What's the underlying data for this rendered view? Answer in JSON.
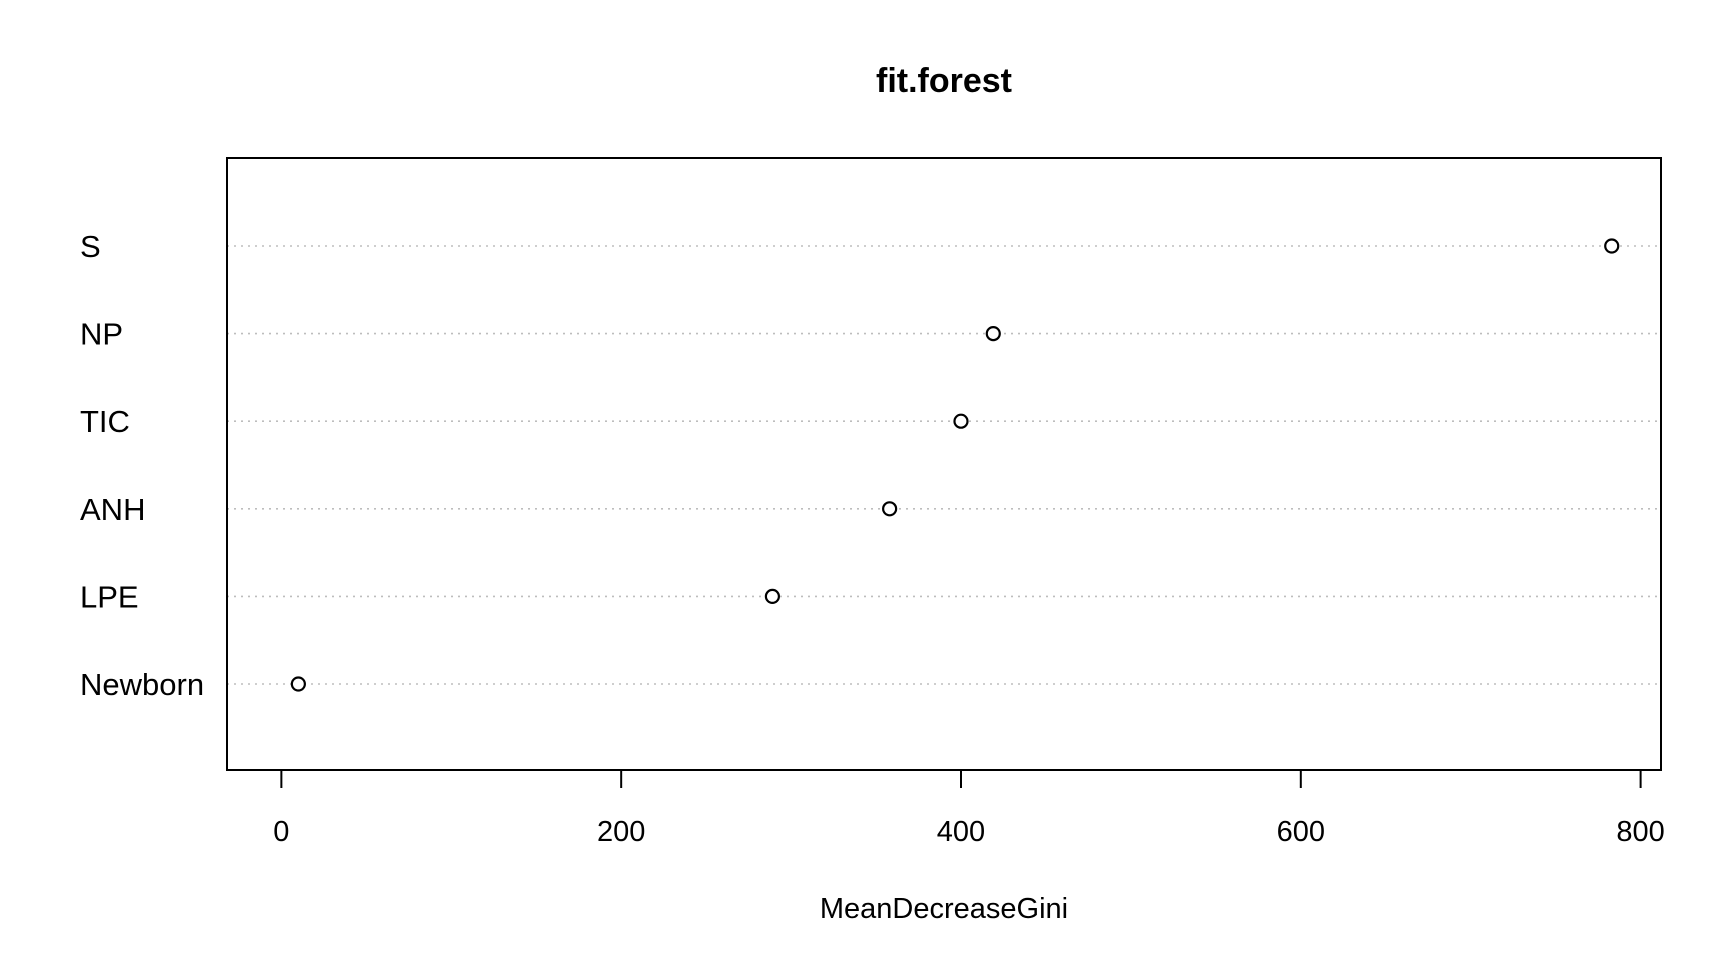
{
  "chart_data": {
    "type": "scatter",
    "title": "fit.forest",
    "xlabel": "MeanDecreaseGini",
    "ylabel": "",
    "xlim": [
      -32,
      812
    ],
    "xticks": [
      0,
      200,
      400,
      600,
      800
    ],
    "categories": [
      "S",
      "NP",
      "TIC",
      "ANH",
      "LPE",
      "Newborn"
    ],
    "values": [
      783,
      419,
      400,
      358,
      289,
      10
    ],
    "grid": "dotted horizontal guide per category",
    "point_style": "open-circle",
    "colors": {
      "axis": "#000000",
      "guide": "#bdbdbd",
      "point": "#000000"
    }
  }
}
